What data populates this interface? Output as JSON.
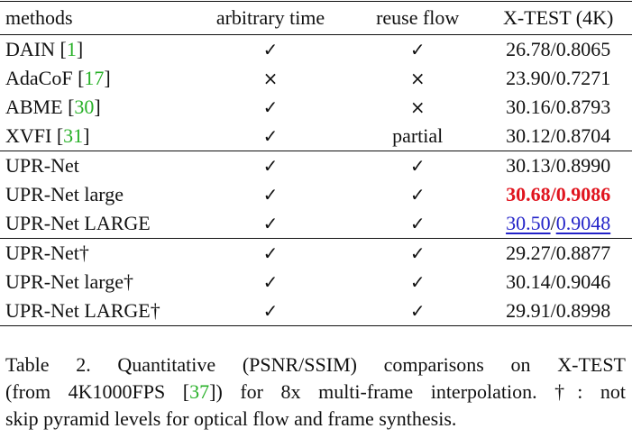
{
  "table": {
    "headers": [
      "methods",
      "arbitrary time",
      "reuse flow",
      "X-TEST (4K)"
    ],
    "groups": [
      [
        {
          "method": "DAIN",
          "ref": "1",
          "time": "✓",
          "reuse": "✓",
          "xtest": "26.78/0.8065"
        },
        {
          "method": "AdaCoF",
          "ref": "17",
          "time": "×",
          "reuse": "×",
          "xtest": "23.90/0.7271"
        },
        {
          "method": "ABME",
          "ref": "30",
          "time": "✓",
          "reuse": "×",
          "xtest": "30.16/0.8793"
        },
        {
          "method": "XVFI",
          "ref": "31",
          "time": "✓",
          "reuse": "partial",
          "xtest": "30.12/0.8704"
        }
      ],
      [
        {
          "method": "UPR-Net",
          "time": "✓",
          "reuse": "✓",
          "xtest": "30.13/0.8990"
        },
        {
          "method": "UPR-Net large",
          "time": "✓",
          "reuse": "✓",
          "xtest_psnr": "30.68",
          "xtest_ssim": "0.9086",
          "highlight": "best"
        },
        {
          "method": "UPR-Net LARGE",
          "time": "✓",
          "reuse": "✓",
          "xtest_psnr": "30.50",
          "xtest_ssim": "0.9048",
          "highlight": "second"
        }
      ],
      [
        {
          "method": "UPR-Net†",
          "time": "✓",
          "reuse": "✓",
          "xtest": "29.27/0.8877"
        },
        {
          "method": "UPR-Net large†",
          "time": "✓",
          "reuse": "✓",
          "xtest": "30.14/0.9046"
        },
        {
          "method": "UPR-Net LARGE†",
          "time": "✓",
          "reuse": "✓",
          "xtest": "29.91/0.8998"
        }
      ]
    ],
    "separator": "/"
  },
  "caption": {
    "line1": "Table 2.  Quantitative (PSNR/SSIM) comparisons on X-TEST",
    "line2_pre": "(from 4K1000FPS [",
    "line2_ref": "37",
    "line2_post": "]) for 8x multi-frame interpolation.  †: not",
    "line3": "skip pyramid levels for optical flow and frame synthesis."
  },
  "colors": {
    "ref_green": "#27b027",
    "best_red": "#e0141e",
    "second_blue": "#2323c8"
  }
}
